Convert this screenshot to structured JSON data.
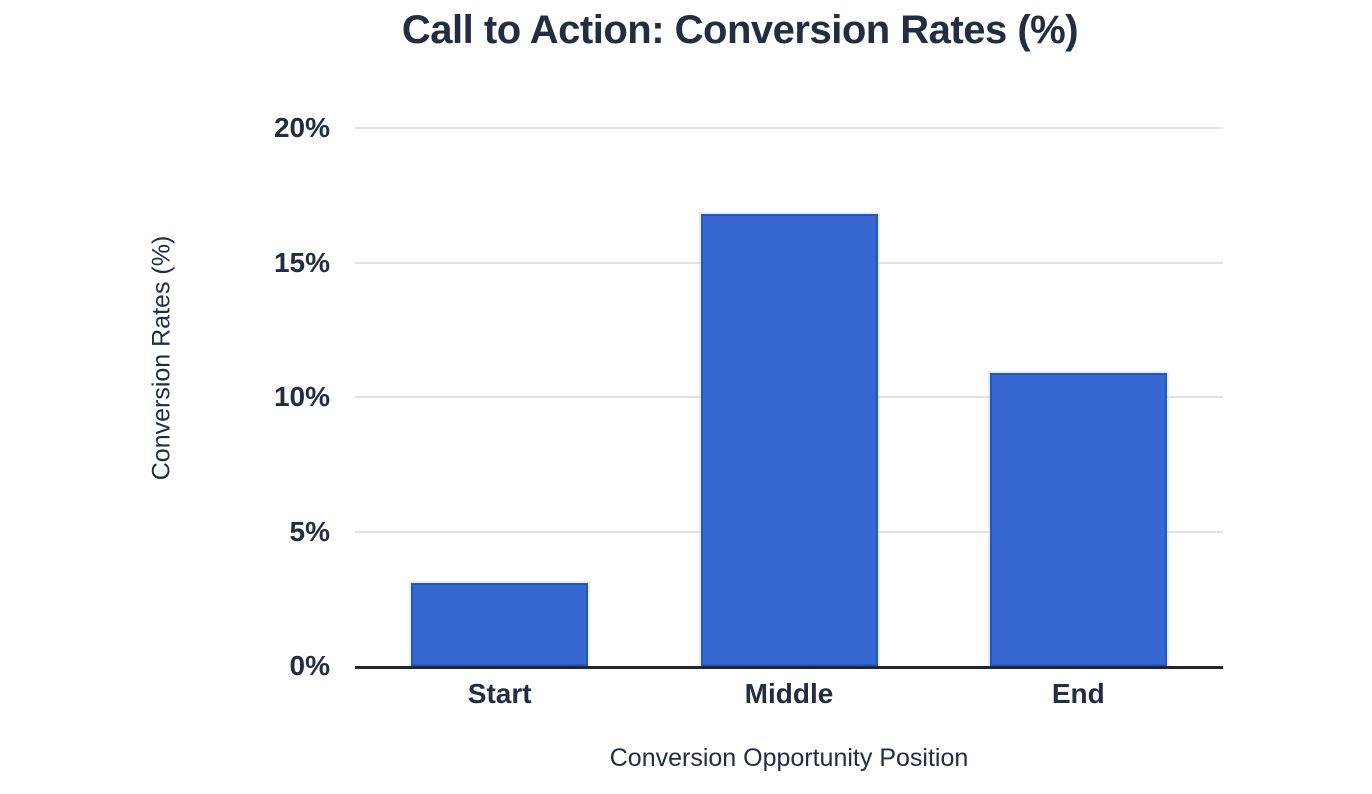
{
  "chart_data": {
    "type": "bar",
    "title": "Call to Action: Conversion Rates (%)",
    "xlabel": "Conversion Opportunity Position",
    "ylabel": "Conversion Rates (%)",
    "categories": [
      "Start",
      "Middle",
      "End"
    ],
    "values": [
      3.1,
      16.8,
      10.9
    ],
    "ylim": [
      0,
      20
    ],
    "yticks": [
      0,
      5,
      10,
      15,
      20
    ],
    "ytick_labels": [
      "0%",
      "5%",
      "10%",
      "15%",
      "20%"
    ],
    "grid": true,
    "legend": "none",
    "colors": {
      "bar_fill": "#3767d1",
      "bar_border": "#2456c0",
      "text": "#232d42",
      "gridline": "#dfe2e7",
      "axis_line": "#23252e",
      "background": "#ffffff"
    }
  }
}
